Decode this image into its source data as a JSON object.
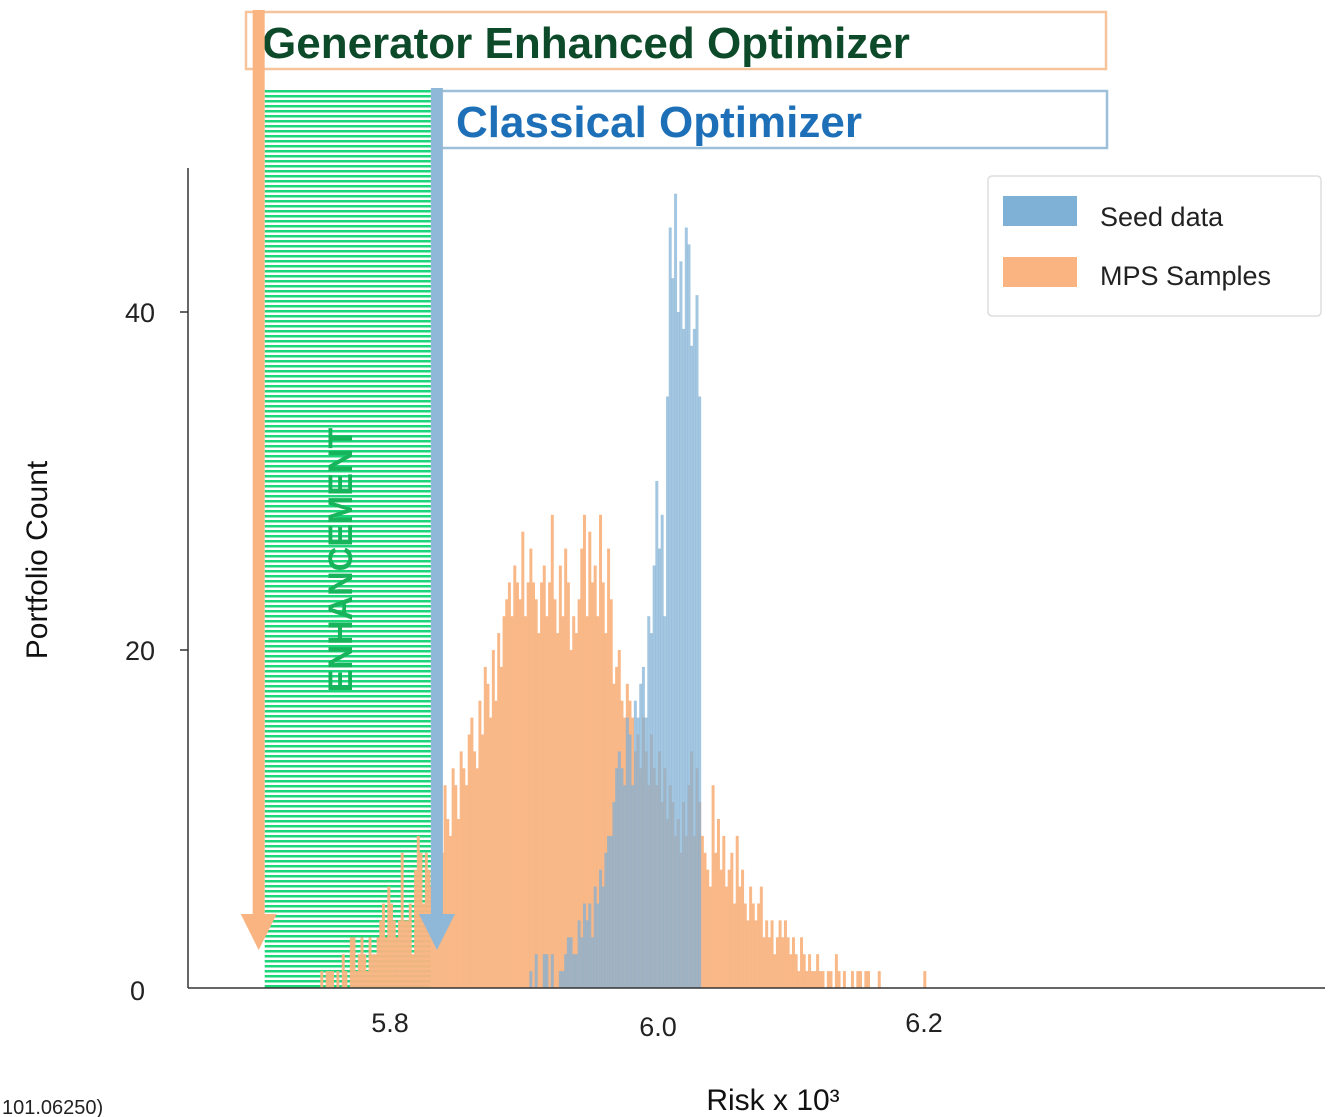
{
  "chart_data": {
    "type": "bar",
    "title": "",
    "xlabel": "Risk x 10³",
    "ylabel": "Portfolio Count",
    "xlim": [
      5.695,
      6.43
    ],
    "ylim": [
      0,
      48
    ],
    "x_ticks": [
      "5.8",
      "6.0",
      "6.2"
    ],
    "y_ticks": [
      "0",
      "20",
      "40"
    ],
    "grid": false,
    "legend_position": "top-right",
    "bin_width": 0.002,
    "series": [
      {
        "name": "Seed data",
        "color": "#7fb0d6",
        "x_start": 5.896,
        "values": [
          0,
          0,
          0,
          0,
          1,
          0,
          2,
          0,
          0,
          2,
          2,
          0,
          2,
          0,
          0,
          1,
          1,
          2,
          3,
          3,
          2,
          2,
          4,
          3,
          5,
          4,
          5,
          3,
          6,
          5,
          7,
          6,
          8,
          9,
          9,
          11,
          13,
          14,
          13,
          12,
          16,
          15,
          12,
          17,
          16,
          18,
          19,
          16,
          22,
          21,
          25,
          30,
          26,
          28,
          22,
          35,
          45,
          42,
          47,
          40,
          43,
          39,
          45,
          44,
          38,
          39,
          41,
          35
        ]
      },
      {
        "name": "MPS Samples",
        "color": "#f9b482",
        "x_start": 5.746,
        "values": [
          0,
          1,
          0,
          1,
          1,
          1,
          0,
          1,
          0,
          2,
          1,
          0,
          3,
          3,
          1,
          2,
          3,
          2,
          1,
          3,
          2,
          2,
          3,
          4,
          5,
          3,
          6,
          5,
          4,
          3,
          4,
          8,
          4,
          4,
          5,
          2,
          7,
          9,
          8,
          5,
          8,
          7,
          6,
          10,
          11,
          9,
          8,
          12,
          10,
          9,
          13,
          12,
          10,
          14,
          13,
          12,
          15,
          16,
          14,
          13,
          17,
          15,
          19,
          18,
          16,
          20,
          17,
          21,
          19,
          22,
          23,
          24,
          22,
          25,
          24,
          23,
          27,
          22,
          24,
          26,
          24,
          23,
          21,
          24,
          25,
          22,
          24,
          28,
          23,
          21,
          25,
          22,
          26,
          24,
          20,
          22,
          21,
          23,
          26,
          28,
          22,
          27,
          24,
          25,
          22,
          28,
          24,
          21,
          26,
          23,
          18,
          19,
          20,
          17,
          16,
          18,
          17,
          16,
          14,
          15,
          13,
          16,
          14,
          12,
          15,
          13,
          12,
          14,
          11,
          13,
          10,
          12,
          11,
          9,
          10,
          8,
          11,
          9,
          12,
          14,
          9,
          13,
          11,
          9,
          8,
          7,
          6,
          12,
          8,
          10,
          7,
          9,
          6,
          7,
          8,
          5,
          9,
          6,
          7,
          5,
          4,
          6,
          5,
          4,
          5,
          6,
          3,
          4,
          3,
          4,
          2,
          3,
          4,
          3,
          4,
          3,
          2,
          3,
          2,
          1,
          3,
          2,
          1,
          2,
          1,
          1,
          2,
          1,
          1,
          0,
          1,
          1,
          0,
          2,
          1,
          0,
          1,
          0,
          0,
          1,
          0,
          1,
          1,
          0,
          1,
          1,
          0,
          0,
          0,
          1,
          0,
          0,
          0,
          0,
          0,
          0,
          0,
          0,
          0,
          0,
          0,
          0,
          0,
          0,
          0,
          0,
          1
        ]
      }
    ],
    "annotations": {
      "generator_label": "Generator Enhanced Optimizer",
      "classical_label": "Classical Optimizer",
      "enhancement_label": "ENHANCEMENT",
      "generator_x": 5.702,
      "classical_x": 5.835,
      "colors": {
        "generator": "#f9b482",
        "classical": "#8fb8d8",
        "enhancement": "#1ed67a"
      }
    }
  },
  "footnote": "101.06250)"
}
